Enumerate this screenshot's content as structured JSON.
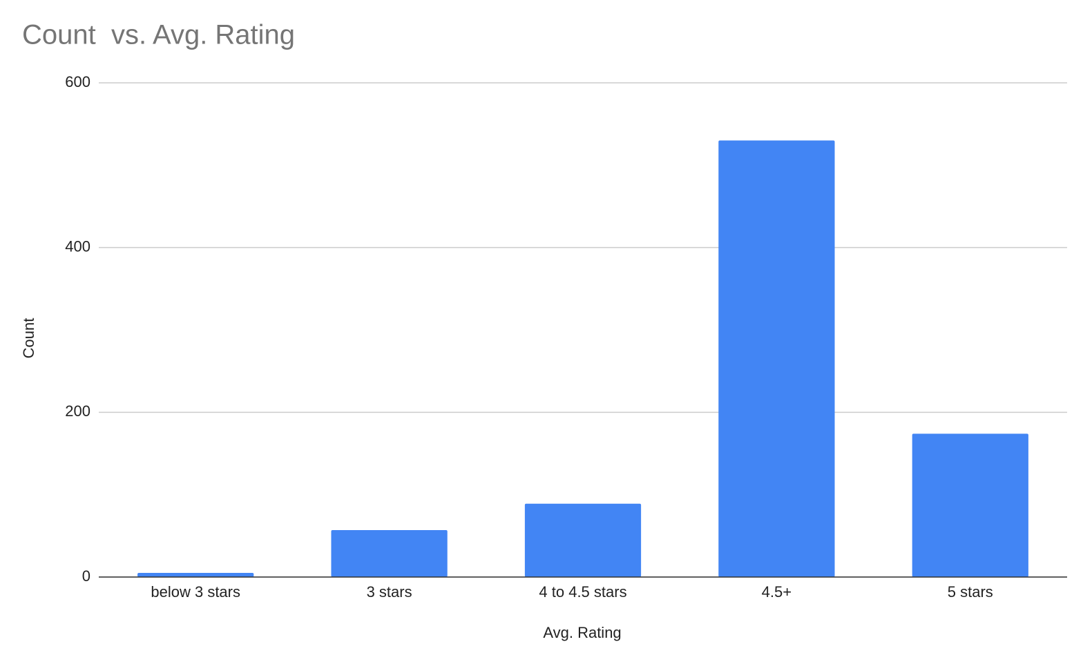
{
  "chart_data": {
    "type": "bar",
    "title": "Count  vs. Avg. Rating",
    "x_label": "Avg. Rating",
    "y_label": "Count",
    "categories": [
      "below 3 stars",
      "3 stars",
      "4 to 4.5 stars",
      "4.5+",
      "5 stars"
    ],
    "values": [
      5,
      57,
      89,
      530,
      174
    ],
    "color": "#4285f4",
    "ylim": [
      0,
      600
    ],
    "yticks": [
      0,
      200,
      400,
      600
    ],
    "grid": true
  }
}
